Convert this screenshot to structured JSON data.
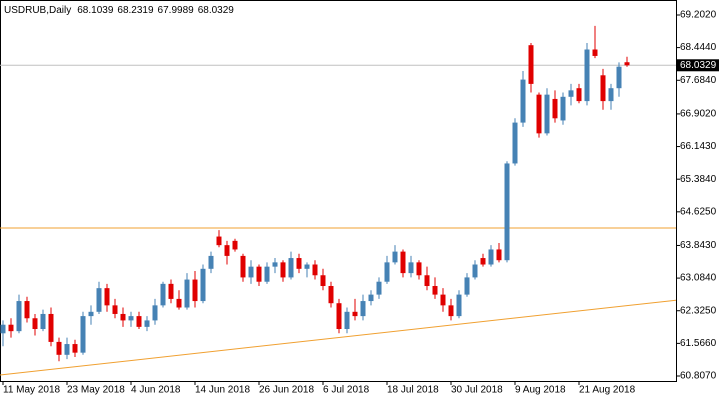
{
  "chart_data": {
    "type": "candlestick",
    "title": "USDRUB,Daily",
    "categories": [
      "11 May 2018",
      null,
      null,
      null,
      null,
      null,
      null,
      null,
      "23 May 2018",
      null,
      null,
      null,
      null,
      null,
      null,
      null,
      "4 Jun 2018",
      null,
      null,
      null,
      null,
      null,
      null,
      null,
      "14 Jun 2018",
      null,
      null,
      null,
      null,
      null,
      null,
      null,
      "26 Jun 2018",
      null,
      null,
      null,
      null,
      null,
      null,
      null,
      "6 Jul 2018",
      null,
      null,
      null,
      null,
      null,
      null,
      null,
      "18 Jul 2018",
      null,
      null,
      null,
      null,
      null,
      null,
      null,
      "30 Jul 2018",
      null,
      null,
      null,
      null,
      null,
      null,
      null,
      "9 Aug 2018",
      null,
      null,
      null,
      null,
      null,
      null,
      null,
      "21 Aug 2018",
      null,
      null,
      null,
      null,
      null,
      null
    ],
    "open": [
      61.8,
      62.0,
      61.85,
      62.55,
      62.15,
      61.9,
      62.25,
      61.6,
      61.3,
      61.55,
      61.35,
      62.2,
      62.3,
      62.85,
      62.45,
      62.25,
      62.1,
      62.2,
      61.95,
      62.1,
      62.45,
      62.95,
      62.6,
      62.4,
      63.05,
      62.55,
      63.3,
      64.05,
      63.85,
      63.95,
      63.6,
      63.1,
      63.35,
      63.0,
      63.35,
      63.45,
      63.1,
      63.55,
      63.3,
      63.4,
      63.15,
      62.9,
      62.5,
      61.9,
      62.3,
      62.2,
      62.55,
      62.7,
      63.0,
      63.45,
      63.7,
      63.2,
      63.45,
      63.15,
      62.9,
      62.7,
      62.45,
      62.2,
      62.7,
      63.1,
      63.55,
      63.4,
      63.75,
      63.5,
      65.75,
      66.7,
      68.5,
      67.35,
      66.45,
      67.25,
      66.75,
      67.3,
      67.5,
      67.2,
      68.4,
      67.8,
      67.2,
      67.5,
      68.1039
    ],
    "high": [
      62.1,
      62.15,
      62.7,
      62.65,
      62.25,
      62.35,
      62.4,
      61.7,
      61.7,
      61.65,
      62.3,
      62.45,
      63.0,
      62.95,
      62.6,
      62.4,
      62.3,
      62.3,
      62.2,
      62.6,
      63.0,
      63.05,
      62.8,
      63.2,
      63.25,
      63.4,
      63.7,
      64.2,
      63.95,
      64.0,
      63.65,
      63.5,
      63.4,
      63.45,
      63.55,
      63.5,
      63.7,
      63.65,
      63.45,
      63.5,
      63.3,
      63.0,
      62.6,
      62.4,
      62.6,
      62.7,
      62.8,
      63.1,
      63.6,
      63.85,
      63.75,
      63.6,
      63.5,
      63.35,
      63.1,
      62.85,
      62.6,
      62.8,
      63.2,
      63.5,
      63.65,
      63.85,
      63.9,
      65.8,
      66.8,
      67.9,
      68.55,
      67.4,
      67.5,
      67.45,
      67.4,
      67.6,
      67.6,
      68.55,
      68.95,
      67.95,
      67.6,
      68.1,
      68.2319
    ],
    "low": [
      61.5,
      61.7,
      61.8,
      62.05,
      61.75,
      61.85,
      61.5,
      61.15,
      61.2,
      61.25,
      61.3,
      62.0,
      62.25,
      62.3,
      62.15,
      61.95,
      61.95,
      61.9,
      61.85,
      62.0,
      62.4,
      62.5,
      62.35,
      62.35,
      62.4,
      62.5,
      63.2,
      63.8,
      63.4,
      63.7,
      63.0,
      62.95,
      62.9,
      62.95,
      63.2,
      63.0,
      63.05,
      63.2,
      63.1,
      63.05,
      62.8,
      62.4,
      61.8,
      61.8,
      62.1,
      62.1,
      62.45,
      62.6,
      62.95,
      63.4,
      63.1,
      63.1,
      63.05,
      62.8,
      62.6,
      62.3,
      62.1,
      62.15,
      62.65,
      63.05,
      63.35,
      63.35,
      63.45,
      63.45,
      65.7,
      66.6,
      67.4,
      66.35,
      66.4,
      66.7,
      66.65,
      67.1,
      67.15,
      67.1,
      68.2,
      67.0,
      67.0,
      67.3,
      67.9989
    ],
    "close": [
      62.0,
      61.85,
      62.55,
      62.15,
      61.9,
      62.25,
      61.6,
      61.3,
      61.55,
      61.35,
      62.2,
      62.3,
      62.85,
      62.45,
      62.25,
      62.1,
      62.2,
      61.95,
      62.1,
      62.45,
      62.95,
      62.6,
      62.4,
      63.05,
      62.55,
      63.3,
      63.6,
      63.85,
      63.6,
      63.75,
      63.1,
      63.35,
      63.0,
      63.35,
      63.45,
      63.1,
      63.55,
      63.3,
      63.4,
      63.15,
      62.9,
      62.5,
      61.9,
      62.3,
      62.2,
      62.55,
      62.7,
      63.0,
      63.45,
      63.7,
      63.2,
      63.45,
      63.15,
      62.9,
      62.7,
      62.45,
      62.2,
      62.7,
      63.1,
      63.4,
      63.4,
      63.75,
      63.5,
      65.75,
      66.7,
      67.7,
      67.6,
      66.45,
      67.35,
      66.8,
      67.3,
      67.45,
      67.2,
      68.4,
      68.25,
      67.2,
      67.5,
      68.0,
      68.0329
    ],
    "up_color": "#4682b4",
    "down_color": "#e00000",
    "horizontal_line": {
      "value": 64.25,
      "color": "#f0a030"
    },
    "trend_line": {
      "start": 60.83,
      "end": 62.57,
      "color": "#f0a030"
    },
    "ylim": [
      60.691,
      69.551
    ],
    "yticks": [
      {
        "value": 69.202,
        "label": "69.2020"
      },
      {
        "value": 68.444,
        "label": "68.4440"
      },
      {
        "value": 67.684,
        "label": "67.6840"
      },
      {
        "value": 66.902,
        "label": "66.9020"
      },
      {
        "value": 66.143,
        "label": "66.1430"
      },
      {
        "value": 65.384,
        "label": "65.3840"
      },
      {
        "value": 64.625,
        "label": "64.6250"
      },
      {
        "value": 63.843,
        "label": "63.8430"
      },
      {
        "value": 63.084,
        "label": "63.0840"
      },
      {
        "value": 62.325,
        "label": "62.3250"
      },
      {
        "value": 61.566,
        "label": "61.5660"
      },
      {
        "value": 60.807,
        "label": "60.8070"
      }
    ]
  }
}
